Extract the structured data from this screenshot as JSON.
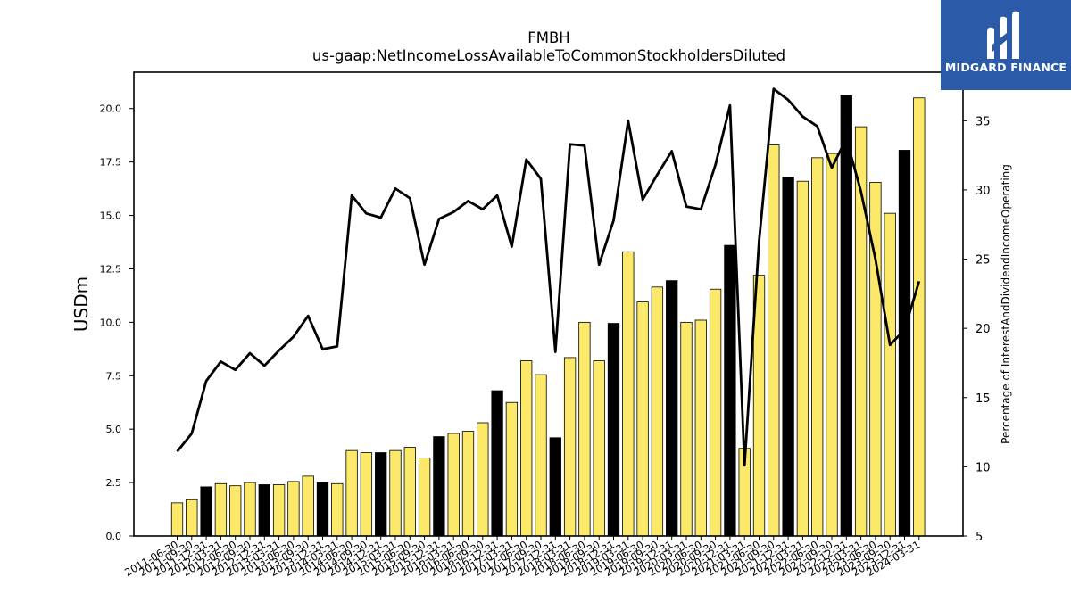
{
  "chart_data": {
    "type": "bar",
    "title": "FMBH",
    "subtitle": "us-gaap:NetIncomeLossAvailableToCommonStockholdersDiluted",
    "ylabel": "USDm",
    "y2label": "Percentage of InterestAndDividendIncomeOperating",
    "ylim": [
      0,
      21.7
    ],
    "y2lim": [
      5,
      38.5
    ],
    "yticks": [
      "0.0",
      "2.5",
      "5.0",
      "7.5",
      "10.0",
      "12.5",
      "15.0",
      "17.5",
      "20.0"
    ],
    "y2ticks": [
      "5",
      "10",
      "15",
      "20",
      "25",
      "30",
      "35"
    ],
    "categories": [
      "2011-06-30",
      "2011-09-30",
      "2011-12-31",
      "2012-03-31",
      "2012-06-30",
      "2012-09-30",
      "2012-12-31",
      "2013-03-31",
      "2013-06-30",
      "2013-09-30",
      "2013-12-31",
      "2014-03-31",
      "2014-06-30",
      "2014-09-30",
      "2014-12-31",
      "2015-03-31",
      "2015-06-30",
      "2015-09-30",
      "2015-12-31",
      "2016-03-31",
      "2016-06-30",
      "2016-09-30",
      "2016-12-31",
      "2017-03-31",
      "2017-06-30",
      "2017-09-30",
      "2017-12-31",
      "2018-03-31",
      "2018-06-30",
      "2018-09-30",
      "2018-12-31",
      "2019-03-31",
      "2019-06-30",
      "2019-09-30",
      "2019-12-31",
      "2020-03-31",
      "2020-06-30",
      "2020-09-30",
      "2020-12-31",
      "2021-03-31",
      "2021-06-30",
      "2021-09-30",
      "2021-12-31",
      "2022-03-31",
      "2022-06-30",
      "2022-09-30",
      "2022-12-31",
      "2023-03-31",
      "2023-06-30",
      "2023-09-30",
      "2023-12-31",
      "2024-03-31"
    ],
    "series": [
      {
        "type": "bar",
        "values": [
          1.55,
          1.7,
          2.3,
          2.45,
          2.35,
          2.5,
          2.4,
          2.4,
          2.55,
          2.8,
          2.5,
          2.45,
          4.0,
          3.9,
          3.9,
          4.0,
          4.15,
          3.65,
          4.65,
          4.8,
          4.9,
          5.3,
          6.8,
          6.25,
          8.2,
          7.55,
          4.6,
          8.35,
          10.0,
          8.2,
          9.95,
          13.3,
          10.95,
          11.65,
          11.95,
          10.0,
          10.1,
          11.55,
          13.6,
          4.1,
          12.2,
          18.3,
          16.8,
          16.6,
          17.7,
          17.9,
          20.6,
          19.15,
          16.55,
          15.1,
          18.05,
          20.5
        ],
        "highlight": [
          false,
          false,
          true,
          false,
          false,
          false,
          true,
          false,
          false,
          false,
          true,
          false,
          false,
          false,
          true,
          false,
          false,
          false,
          true,
          false,
          false,
          false,
          true,
          false,
          false,
          false,
          true,
          false,
          false,
          false,
          true,
          false,
          false,
          false,
          true,
          false,
          false,
          false,
          true,
          false,
          false,
          false,
          true,
          false,
          false,
          false,
          true,
          false,
          false,
          false,
          true,
          false
        ]
      },
      {
        "type": "line",
        "axis": "right",
        "values": [
          11.1,
          12.4,
          16.2,
          17.6,
          17.0,
          18.2,
          17.3,
          18.4,
          19.4,
          20.9,
          18.5,
          18.7,
          29.6,
          28.3,
          28.0,
          30.1,
          29.4,
          24.6,
          27.9,
          28.4,
          29.2,
          28.6,
          29.6,
          25.9,
          32.2,
          30.8,
          18.3,
          33.3,
          33.2,
          24.6,
          27.8,
          35.0,
          29.3,
          31.1,
          32.8,
          28.8,
          28.6,
          31.8,
          36.1,
          10.1,
          26.3,
          37.3,
          36.5,
          35.3,
          34.6,
          31.6,
          33.7,
          29.9,
          25.0,
          18.8,
          19.9,
          23.4
        ]
      }
    ],
    "colors": {
      "bar_fill": "#fce96a",
      "bar_highlight": "#000000",
      "bar_edge": "#000000",
      "line": "#000000"
    }
  },
  "logo": {
    "text": "MIDGARD FINANCE",
    "bg": "#2a5aa8"
  }
}
